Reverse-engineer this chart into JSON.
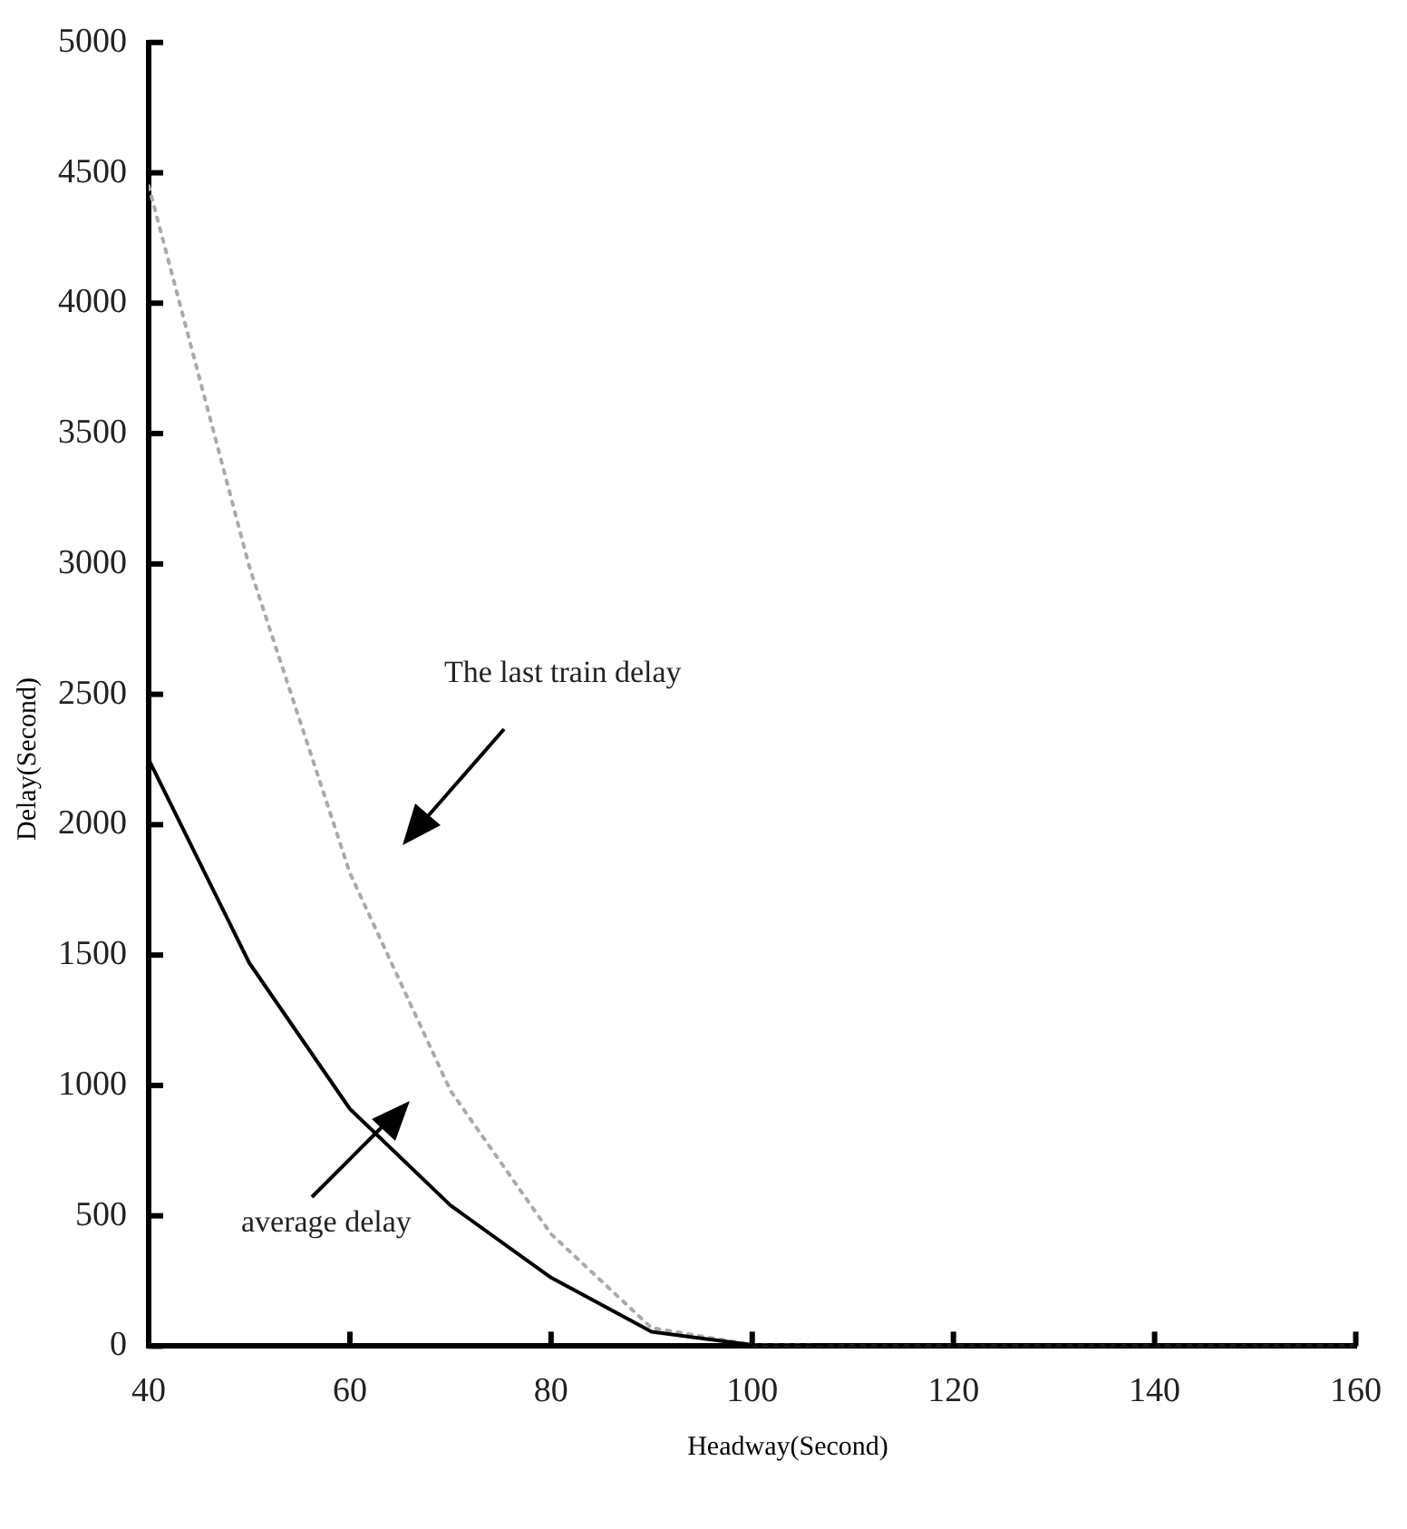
{
  "chart_data": {
    "type": "line",
    "xlabel": "Headway(Second)",
    "ylabel": "Delay(Second)",
    "xlim": [
      40,
      160
    ],
    "xticks": [
      40,
      60,
      80,
      100,
      120,
      140,
      160
    ],
    "ylim": [
      0,
      5000
    ],
    "yticks": [
      0,
      500,
      1000,
      1500,
      2000,
      2500,
      3000,
      3500,
      4000,
      4500,
      5000
    ],
    "grid": false,
    "legend": false,
    "marker": "none",
    "x": [
      40,
      50,
      60,
      70,
      80,
      90,
      100,
      110,
      120,
      130,
      140,
      150,
      160
    ],
    "series": [
      {
        "color": "#000000",
        "line_style": "solid",
        "values": [
          2250,
          1470,
          910,
          540,
          263,
          55,
          5,
          0,
          0,
          0,
          0,
          0,
          0
        ]
      },
      {
        "color": "#aaaaaa",
        "line_style": "dotted",
        "values": [
          4450,
          2990,
          1815,
          980,
          430,
          70,
          5,
          0,
          0,
          0,
          0,
          0,
          0
        ]
      }
    ],
    "annotations": [
      "The last train delay",
      "average delay"
    ]
  }
}
